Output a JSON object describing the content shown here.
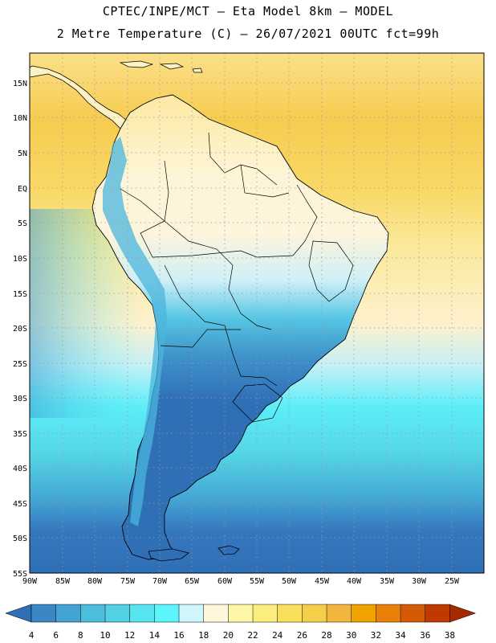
{
  "header": {
    "line1": "CPTEC/INPE/MCT –  Eta Model 8km – MODEL",
    "line2": "2 Metre Temperature (C) – 26/07/2021 00UTC fct=99h"
  },
  "map": {
    "region": "South America",
    "lat_labels": [
      "15N",
      "10N",
      "5N",
      "EQ",
      "5S",
      "10S",
      "15S",
      "20S",
      "25S",
      "30S",
      "35S",
      "40S",
      "45S",
      "50S",
      "55S"
    ],
    "lon_labels": [
      "90W",
      "85W",
      "80W",
      "75W",
      "70W",
      "65W",
      "60W",
      "55W",
      "50W",
      "45W",
      "40W",
      "35W",
      "30W",
      "25W"
    ],
    "grid": "dotted",
    "colors": {
      "ocean_north": "#f7cf52",
      "land_tropical": "#fdf3c8",
      "ocean_south": "#2f6fb6",
      "land_south": "#2f6fb6"
    }
  },
  "legend": {
    "ticks": [
      "4",
      "6",
      "8",
      "10",
      "12",
      "14",
      "16",
      "18",
      "20",
      "22",
      "24",
      "26",
      "28",
      "30",
      "32",
      "34",
      "36",
      "38"
    ],
    "colors": [
      "#2f6fb6",
      "#3b86c4",
      "#44a3d2",
      "#4cbedc",
      "#53d0e4",
      "#57e3ef",
      "#5cf5fc",
      "#cff6fb",
      "#fff6dc",
      "#fef7a6",
      "#fcee7e",
      "#f9df5c",
      "#f5cf4a",
      "#f2b53e",
      "#f0a300",
      "#e8800a",
      "#d35a06",
      "#bf3a00",
      "#a52a00"
    ]
  }
}
